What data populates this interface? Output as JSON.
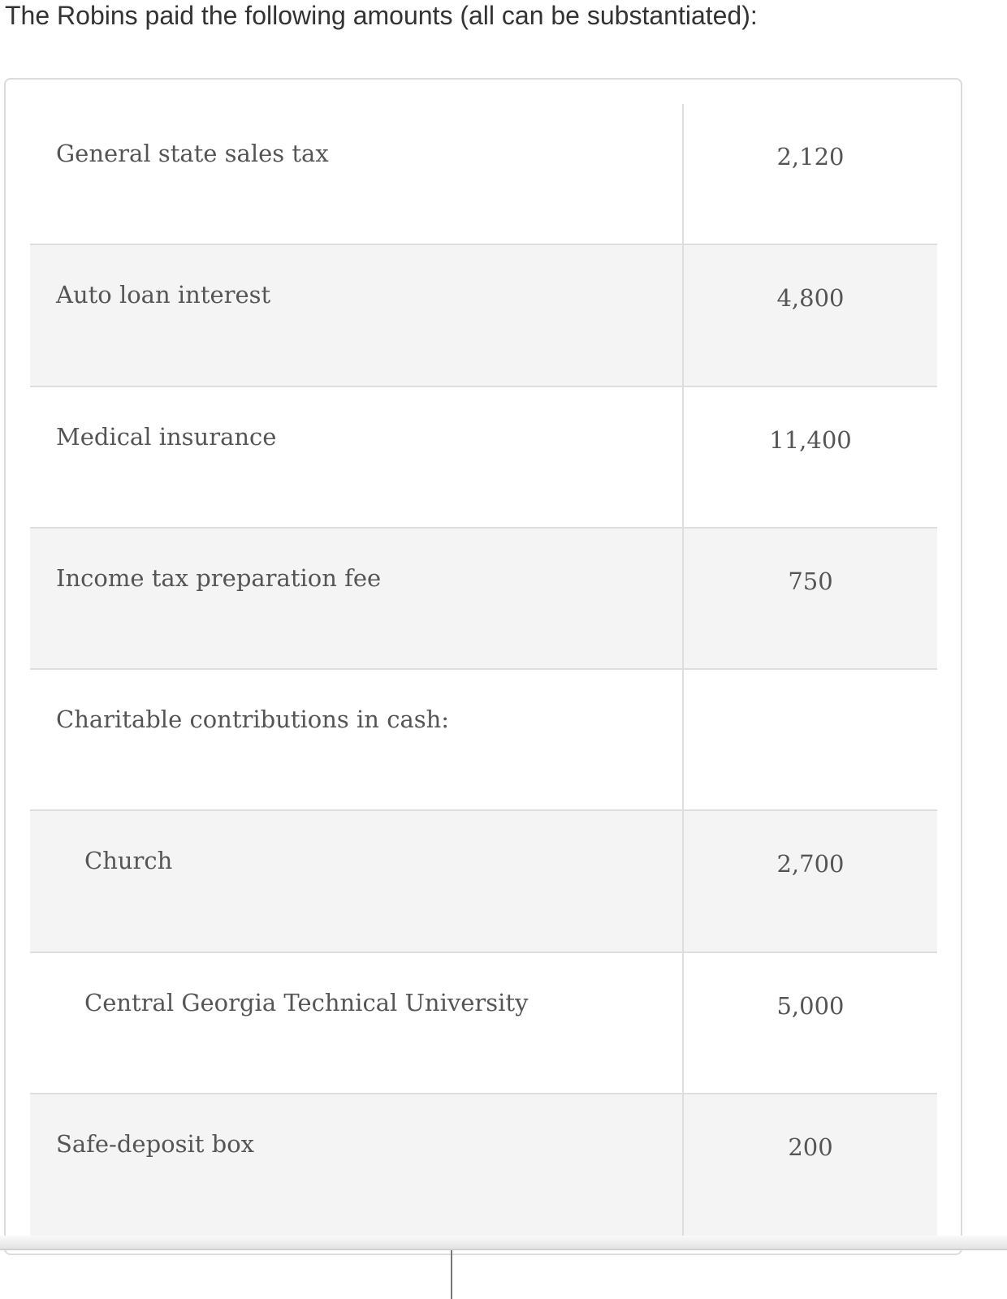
{
  "heading": "The Robins paid the following amounts (all can be substantiated):",
  "rows": [
    {
      "label": "General state sales tax",
      "value": "2,120",
      "indent": false
    },
    {
      "label": "Auto loan interest",
      "value": "4,800",
      "indent": false
    },
    {
      "label": "Medical insurance",
      "value": "11,400",
      "indent": false
    },
    {
      "label": "Income tax preparation fee",
      "value": "750",
      "indent": false
    },
    {
      "label": "Charitable contributions in cash:",
      "value": "",
      "indent": false
    },
    {
      "label": "Church",
      "value": "2,700",
      "indent": true
    },
    {
      "label": "Central Georgia Technical University",
      "value": "5,000",
      "indent": true
    },
    {
      "label": "Safe-deposit box",
      "value": "200",
      "indent": false
    }
  ]
}
